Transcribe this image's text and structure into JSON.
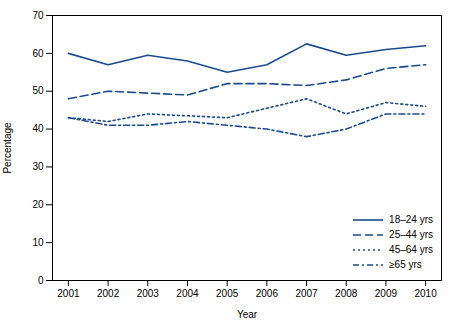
{
  "chart_data": {
    "type": "line",
    "x": [
      2001,
      2002,
      2003,
      2004,
      2005,
      2006,
      2007,
      2008,
      2009,
      2010
    ],
    "series": [
      {
        "name": "18–24 yrs",
        "color": "#1a4b8c",
        "line_style": "solid",
        "values": [
          60,
          57,
          59.5,
          58,
          55,
          57,
          62.5,
          59.5,
          61,
          62
        ]
      },
      {
        "name": "25–44 yrs",
        "color": "#1a4b8c",
        "line_style": "dashed",
        "values": [
          48,
          50,
          49.5,
          49,
          52,
          52,
          51.5,
          53,
          56,
          57
        ]
      },
      {
        "name": "45–64 yrs",
        "color": "#1a4b8c",
        "line_style": "dotted",
        "values": [
          43,
          42,
          44,
          43.5,
          43,
          45.5,
          48,
          44,
          47,
          46
        ]
      },
      {
        "name": "≥65 yrs",
        "color": "#1a4b8c",
        "line_style": "dashdot",
        "values": [
          43,
          41,
          41,
          42,
          41,
          40,
          38,
          40,
          44,
          44
        ]
      }
    ],
    "xlabel": "Year",
    "ylabel": "Percentage",
    "xlim": [
      2000.6,
      2010.4
    ],
    "xticks": [
      2001,
      2002,
      2003,
      2004,
      2005,
      2006,
      2007,
      2008,
      2009,
      2010
    ],
    "ylim": [
      0,
      70
    ],
    "yticks": [
      0,
      10,
      20,
      30,
      40,
      50,
      60,
      70
    ],
    "grid": false,
    "legend": "lower right"
  }
}
